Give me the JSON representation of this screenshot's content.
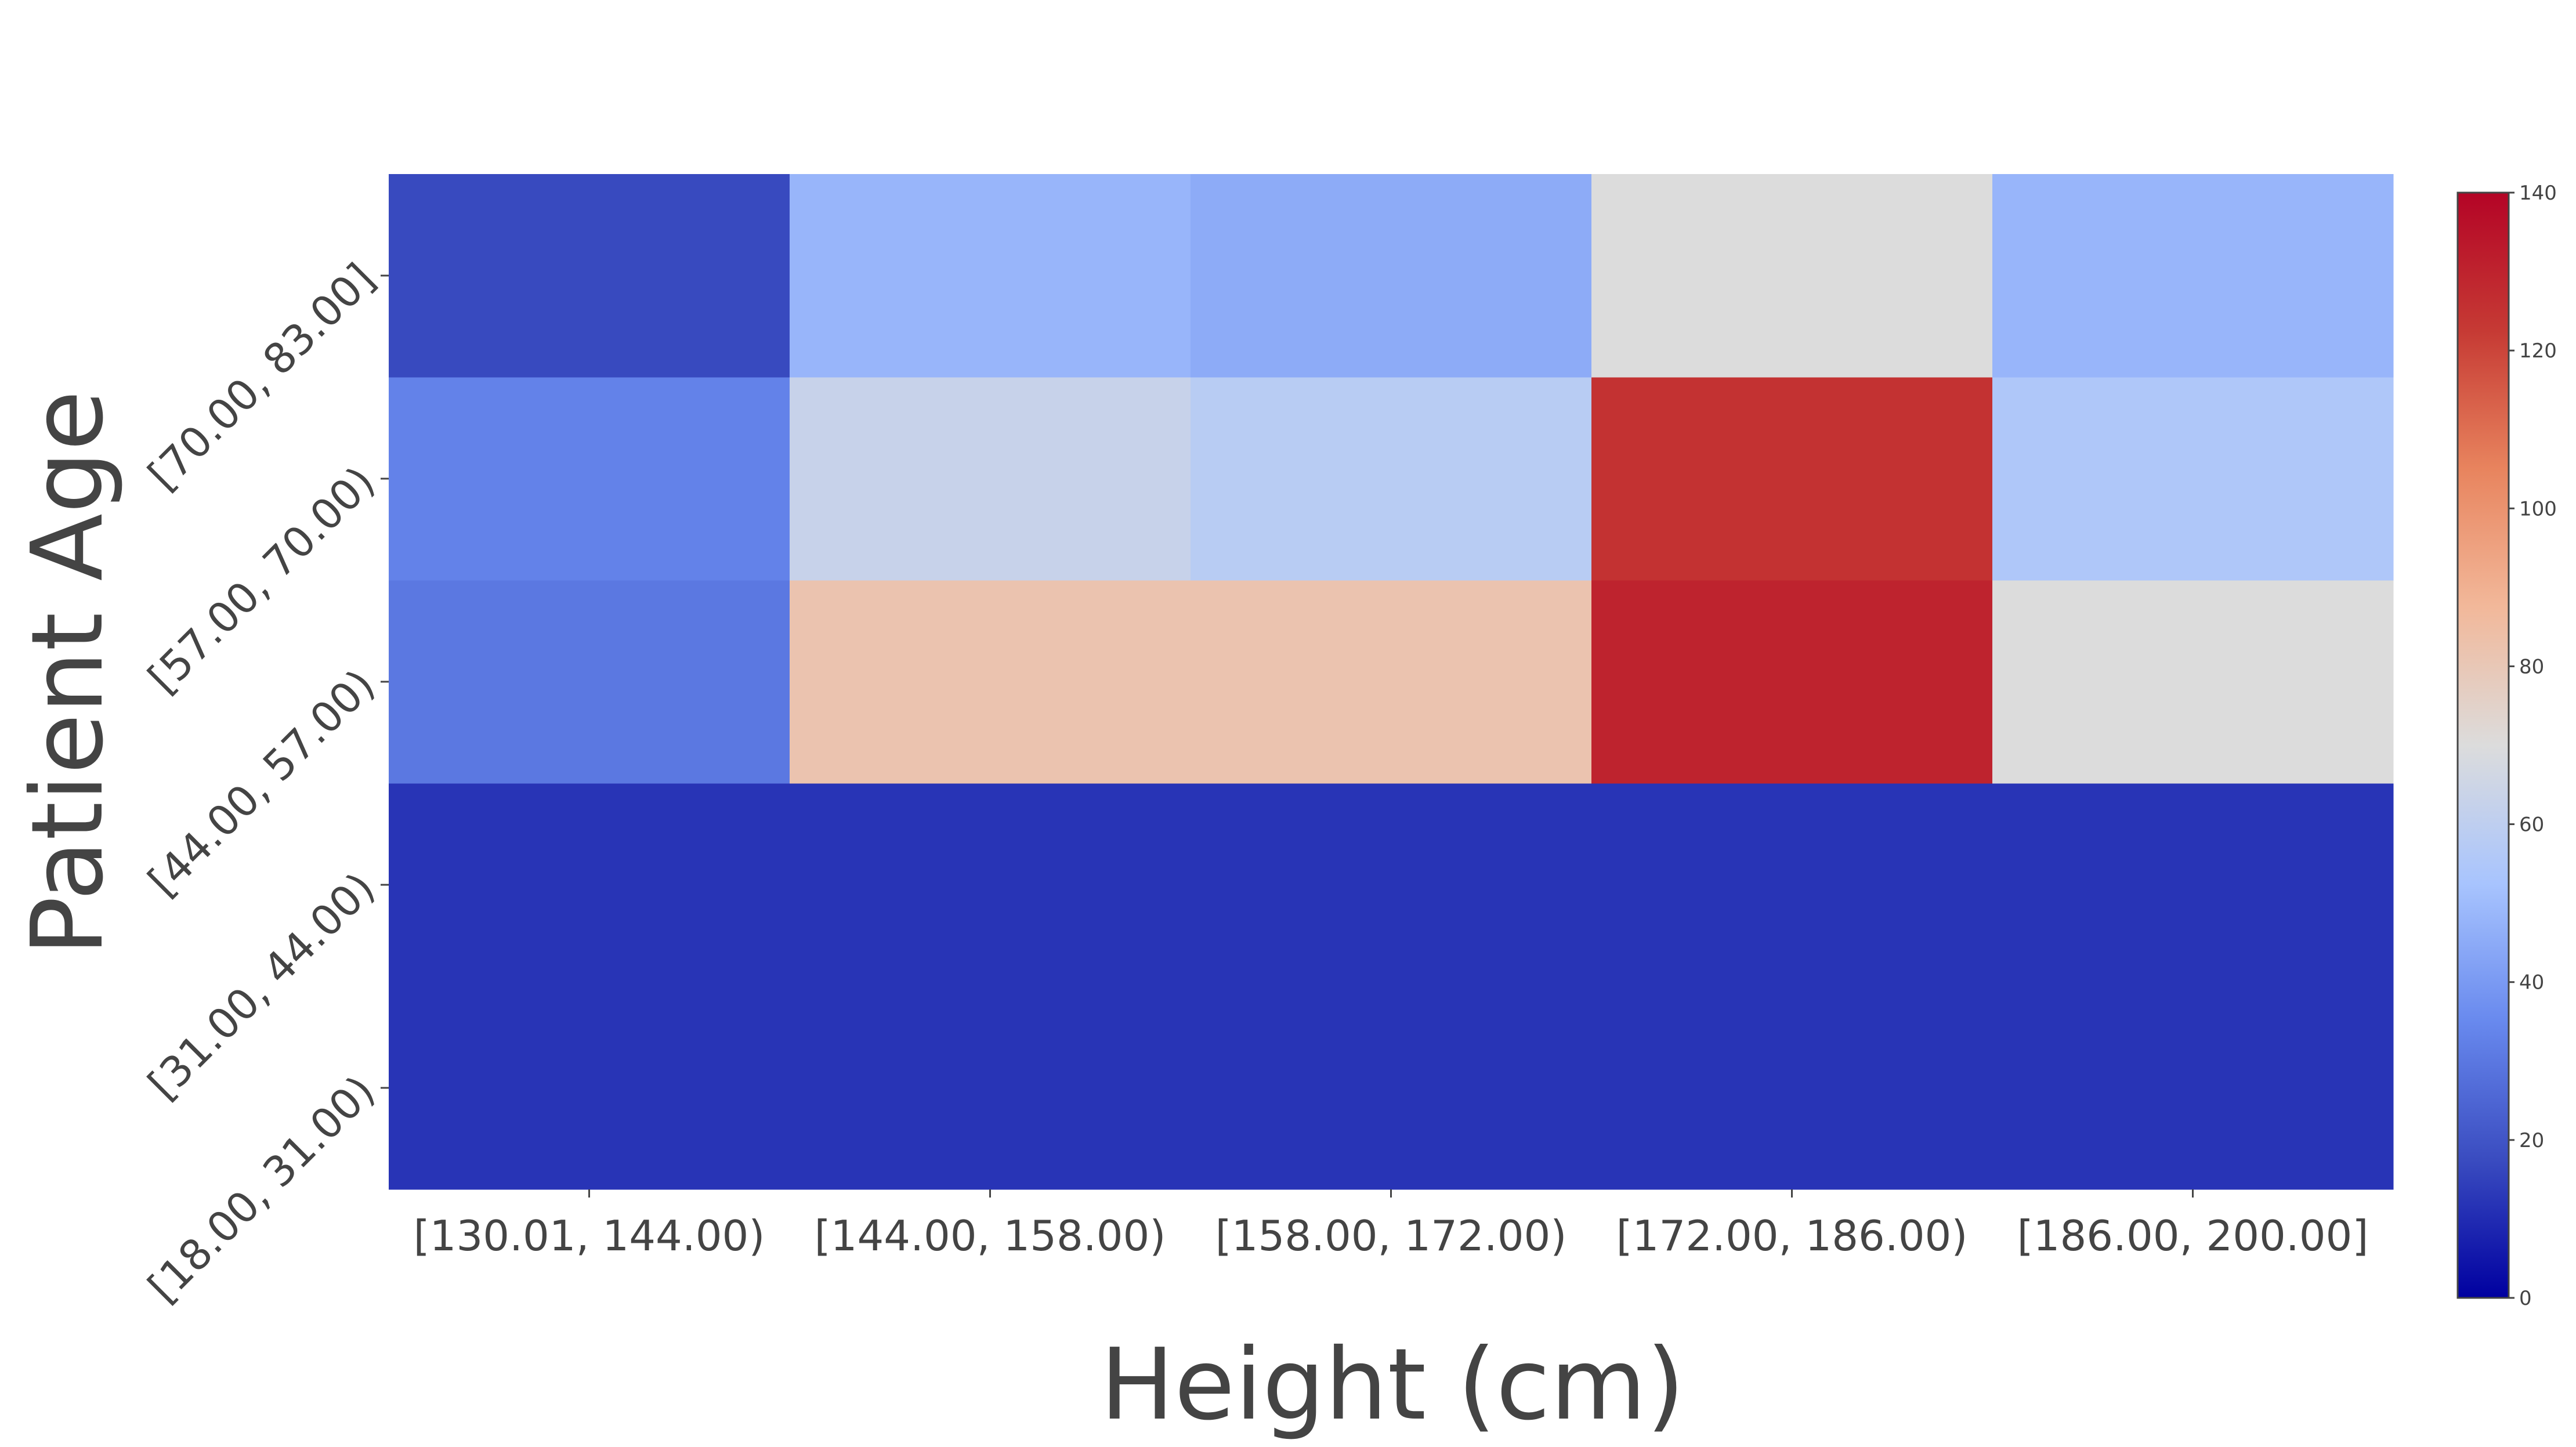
{
  "chart_data": {
    "type": "heatmap",
    "title": "",
    "xlabel": "Height (cm)",
    "ylabel": "Patient Age",
    "x_categories": [
      "[130.01, 144.00)",
      "[144.00, 158.00)",
      "[158.00, 172.00)",
      "[172.00, 186.00)",
      "[186.00, 200.00]"
    ],
    "y_categories": [
      "[18.00, 31.00)",
      "[31.00, 44.00)",
      "[44.00, 57.00)",
      "[57.00, 70.00)",
      "[70.00, 83.00]"
    ],
    "z": [
      [
        12,
        12,
        12,
        12,
        12
      ],
      [
        12,
        12,
        12,
        12,
        12
      ],
      [
        30,
        82,
        82,
        130,
        70
      ],
      [
        33,
        63,
        58,
        125,
        55
      ],
      [
        17,
        48,
        45,
        70,
        48
      ]
    ],
    "zlim": [
      0,
      140
    ],
    "colorscale": [
      "#0000a0",
      "#3a4cc0",
      "#6889ee",
      "#a8c4fe",
      "#dcdcdc",
      "#f2b89a",
      "#e8845e",
      "#c63a34",
      "#b40426"
    ],
    "colorbar_ticks": [
      "0",
      "20",
      "40",
      "60",
      "80",
      "100",
      "120",
      "140"
    ],
    "legend": "colorbar-right",
    "grid": false
  }
}
